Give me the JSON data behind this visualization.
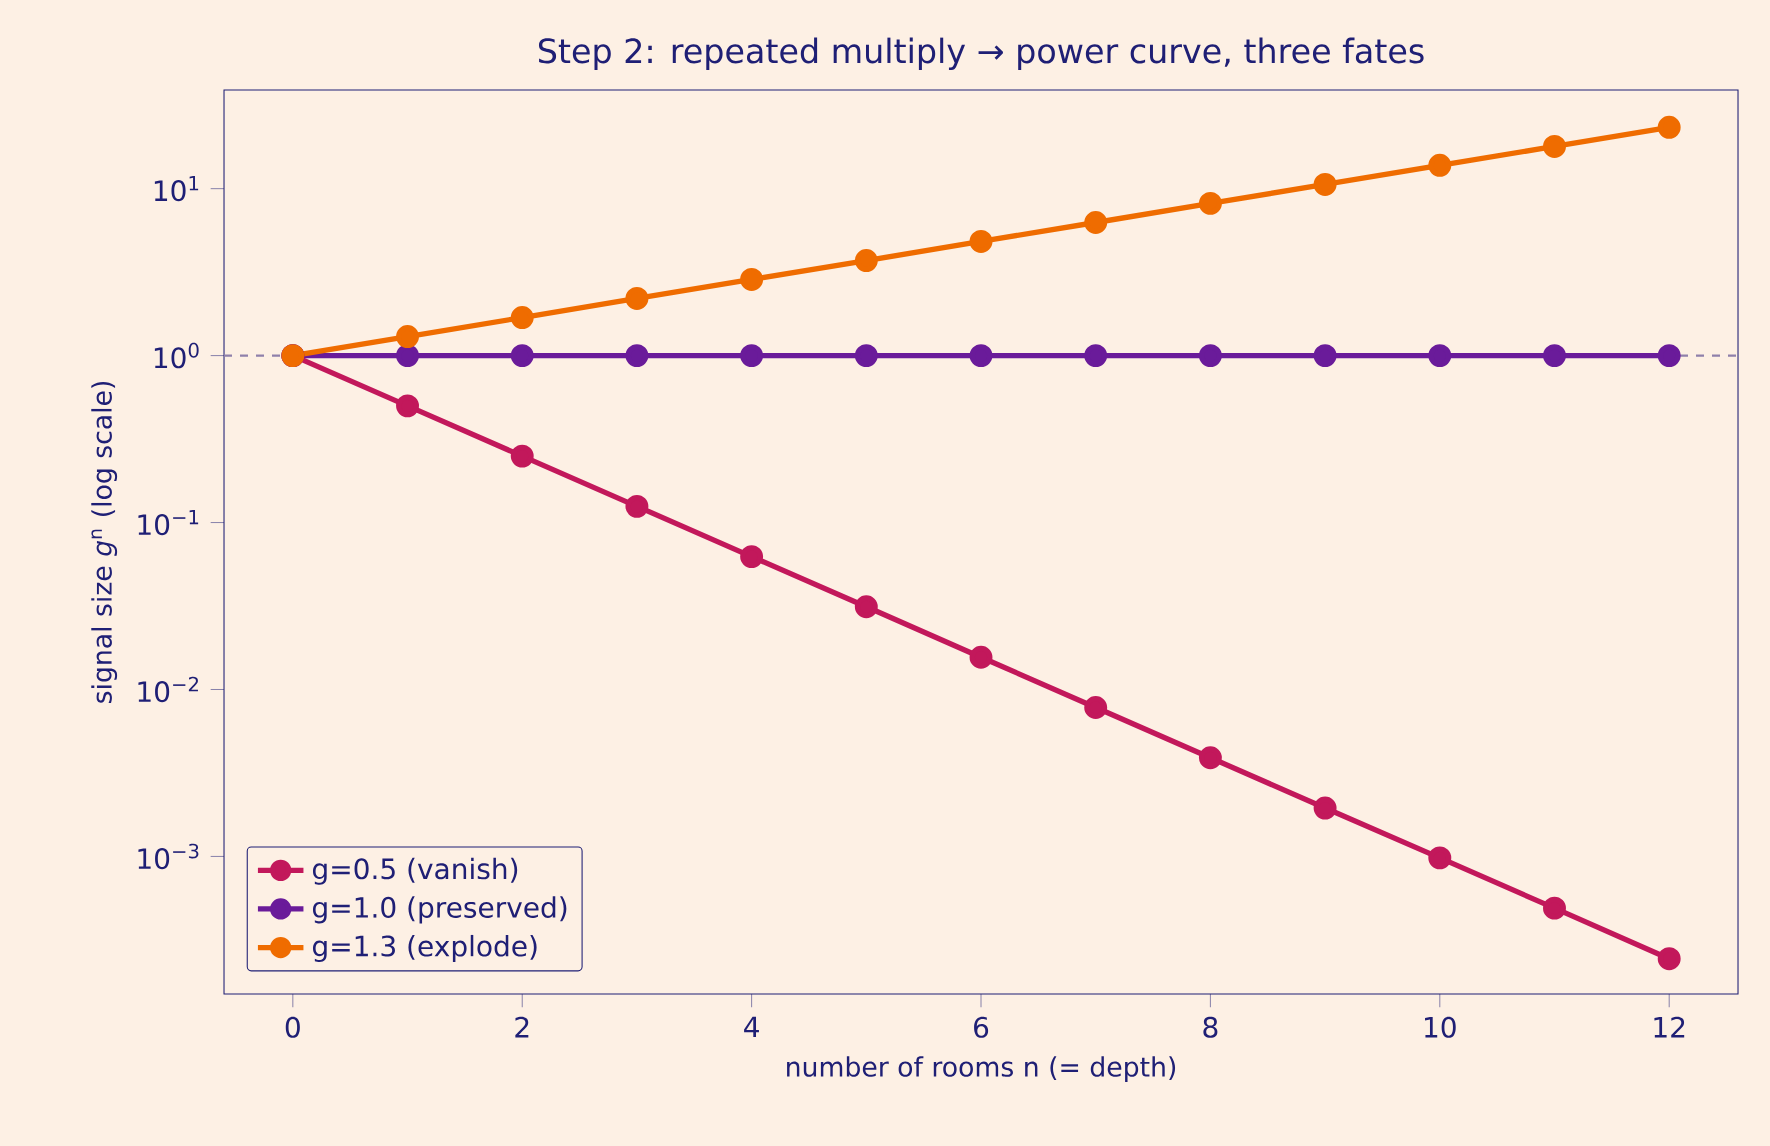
{
  "chart_data": {
    "type": "line",
    "title": "Step 2: repeated multiply → power curve, three fates",
    "xlabel": "number of rooms  n  (= depth)",
    "ylabel": "signal size  *g*$^{n}$  (log scale)",
    "x": [
      0,
      1,
      2,
      3,
      4,
      5,
      6,
      7,
      8,
      9,
      10,
      11,
      12
    ],
    "series": [
      {
        "name": "g=0.5 (vanish)",
        "color": "#c2185b",
        "values": [
          1,
          0.5,
          0.25,
          0.125,
          0.0625,
          0.0313,
          0.0156,
          0.0078,
          0.0039,
          0.00195,
          0.00098,
          0.00049,
          0.000244
        ]
      },
      {
        "name": "g=1.0 (preserved)",
        "color": "#6a1b9a",
        "values": [
          1,
          1,
          1,
          1,
          1,
          1,
          1,
          1,
          1,
          1,
          1,
          1,
          1
        ]
      },
      {
        "name": "g=1.3 (explode)",
        "color": "#ef6c00",
        "values": [
          1,
          1.3,
          1.69,
          2.2,
          2.86,
          3.71,
          4.83,
          6.27,
          8.16,
          10.6,
          13.8,
          17.9,
          23.3
        ]
      }
    ],
    "xlim": [
      -0.6,
      12.6
    ],
    "xticks": [
      0,
      2,
      4,
      6,
      8,
      10,
      12
    ],
    "ylim": [
      0.00015,
      39
    ],
    "log": true,
    "yticks": [
      {
        "value": 0.001,
        "label": "10$^{−3}$"
      },
      {
        "value": 0.01,
        "label": "10$^{−2}$"
      },
      {
        "value": 0.1,
        "label": "10$^{−1}$"
      },
      {
        "value": 1,
        "label": "10$^{0}$"
      },
      {
        "value": 10,
        "label": "10$^{1}$"
      }
    ],
    "ref_lines": [
      {
        "axis": "y",
        "value": 1,
        "color": "#8f80aa",
        "line_style": "dashed"
      }
    ],
    "marker": "circle",
    "line_style": "solid",
    "legend": "bottom left",
    "grid": false
  }
}
